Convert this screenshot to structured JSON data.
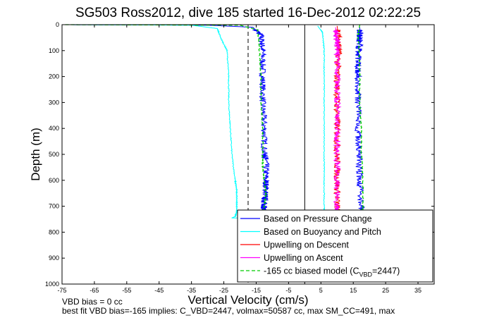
{
  "chart_data": {
    "type": "line",
    "title": "SG503 Ross2012, dive 185 started 16-Dec-2012 02:22:25",
    "xlabel": "Vertical Velocity (cm/s)",
    "ylabel": "Depth (m)",
    "xlim": [
      -75,
      40
    ],
    "ylim": [
      0,
      1000
    ],
    "y_reversed": true,
    "xticks": [
      -75,
      -65,
      -55,
      -45,
      -35,
      -25,
      -15,
      -5,
      5,
      15,
      25,
      35
    ],
    "yticks": [
      0,
      100,
      200,
      300,
      400,
      500,
      600,
      700,
      800,
      900,
      1000
    ],
    "grid": false,
    "legend_position": "bottom-right",
    "series": [
      {
        "name": "Based on Pressure Change",
        "color": "#0000ff",
        "style": "solid",
        "x": [
          -74,
          -30,
          -16,
          -13.5,
          -13,
          -13,
          -13,
          -12.5,
          -12.5,
          -12,
          -12,
          -12,
          -12.5,
          -12.5,
          -13,
          -13,
          -13,
          18,
          17.5,
          17,
          16.8,
          16.5,
          16.5,
          16.5,
          16.5,
          16.8,
          17,
          17,
          17
        ],
        "y": [
          0,
          2,
          10,
          40,
          100,
          200,
          300,
          400,
          500,
          520,
          600,
          640,
          680,
          700,
          720,
          735,
          745,
          745,
          700,
          600,
          500,
          400,
          300,
          200,
          150,
          100,
          60,
          30,
          10
        ]
      },
      {
        "name": "Based on Buoyancy and Pitch",
        "color": "#00ffff",
        "style": "solid",
        "x": [
          -74,
          -35,
          -27,
          -26,
          -24,
          -23.5,
          -23.5,
          -23,
          -22.5,
          -21.5,
          -21,
          -21,
          -21,
          -21.5,
          -22.5,
          6,
          6,
          6,
          6,
          6,
          6,
          6,
          6,
          5.5,
          4
        ],
        "y": [
          0,
          2,
          15,
          50,
          100,
          200,
          300,
          400,
          500,
          600,
          640,
          680,
          720,
          740,
          745,
          745,
          700,
          600,
          500,
          400,
          300,
          200,
          100,
          30,
          5
        ]
      },
      {
        "name": "Upwelling on Descent",
        "color": "#ff0000",
        "style": "solid",
        "x": [
          10,
          10.5,
          10.5,
          10,
          10,
          10,
          10,
          10,
          10,
          10
        ],
        "y": [
          5,
          50,
          100,
          200,
          300,
          400,
          500,
          600,
          700,
          740
        ]
      },
      {
        "name": "Upwelling on Ascent",
        "color": "#ff00ff",
        "style": "solid",
        "x": [
          10,
          10,
          10,
          10,
          10,
          10,
          10,
          10,
          10,
          9.5
        ],
        "y": [
          740,
          700,
          600,
          500,
          400,
          300,
          200,
          100,
          50,
          10
        ]
      },
      {
        "name": "-165 cc biased model (C_VBD=2447)",
        "color": "#00cc00",
        "style": "dashed",
        "x": [
          -74,
          -20,
          -14.5,
          -14,
          -13.5,
          -13.5,
          -13,
          -13,
          -13,
          -12.5,
          -12,
          -12.5,
          -13,
          17.5,
          18,
          18,
          17.5,
          17.5,
          17,
          17,
          16.8,
          16.5,
          17
        ],
        "y": [
          0,
          2,
          20,
          100,
          200,
          300,
          400,
          500,
          550,
          600,
          650,
          700,
          745,
          745,
          700,
          600,
          500,
          400,
          300,
          200,
          100,
          40,
          0
        ]
      }
    ],
    "vertical_reference_lines": [
      {
        "x": -17.5,
        "color": "#000000",
        "style": "dashed"
      },
      {
        "x": 0,
        "color": "#000000",
        "style": "solid"
      }
    ]
  },
  "legend_label_vbd_prefix": "-165 cc biased model (C",
  "legend_label_vbd_sub": "VBD",
  "legend_label_vbd_suffix": "=2447)",
  "notes": {
    "vbd_bias": "VBD bias = 0 cc",
    "best_fit": "best fit VBD bias=-165 implies: C_VBD=2447, volmax=50587 cc, max SM_CC=491, max"
  }
}
